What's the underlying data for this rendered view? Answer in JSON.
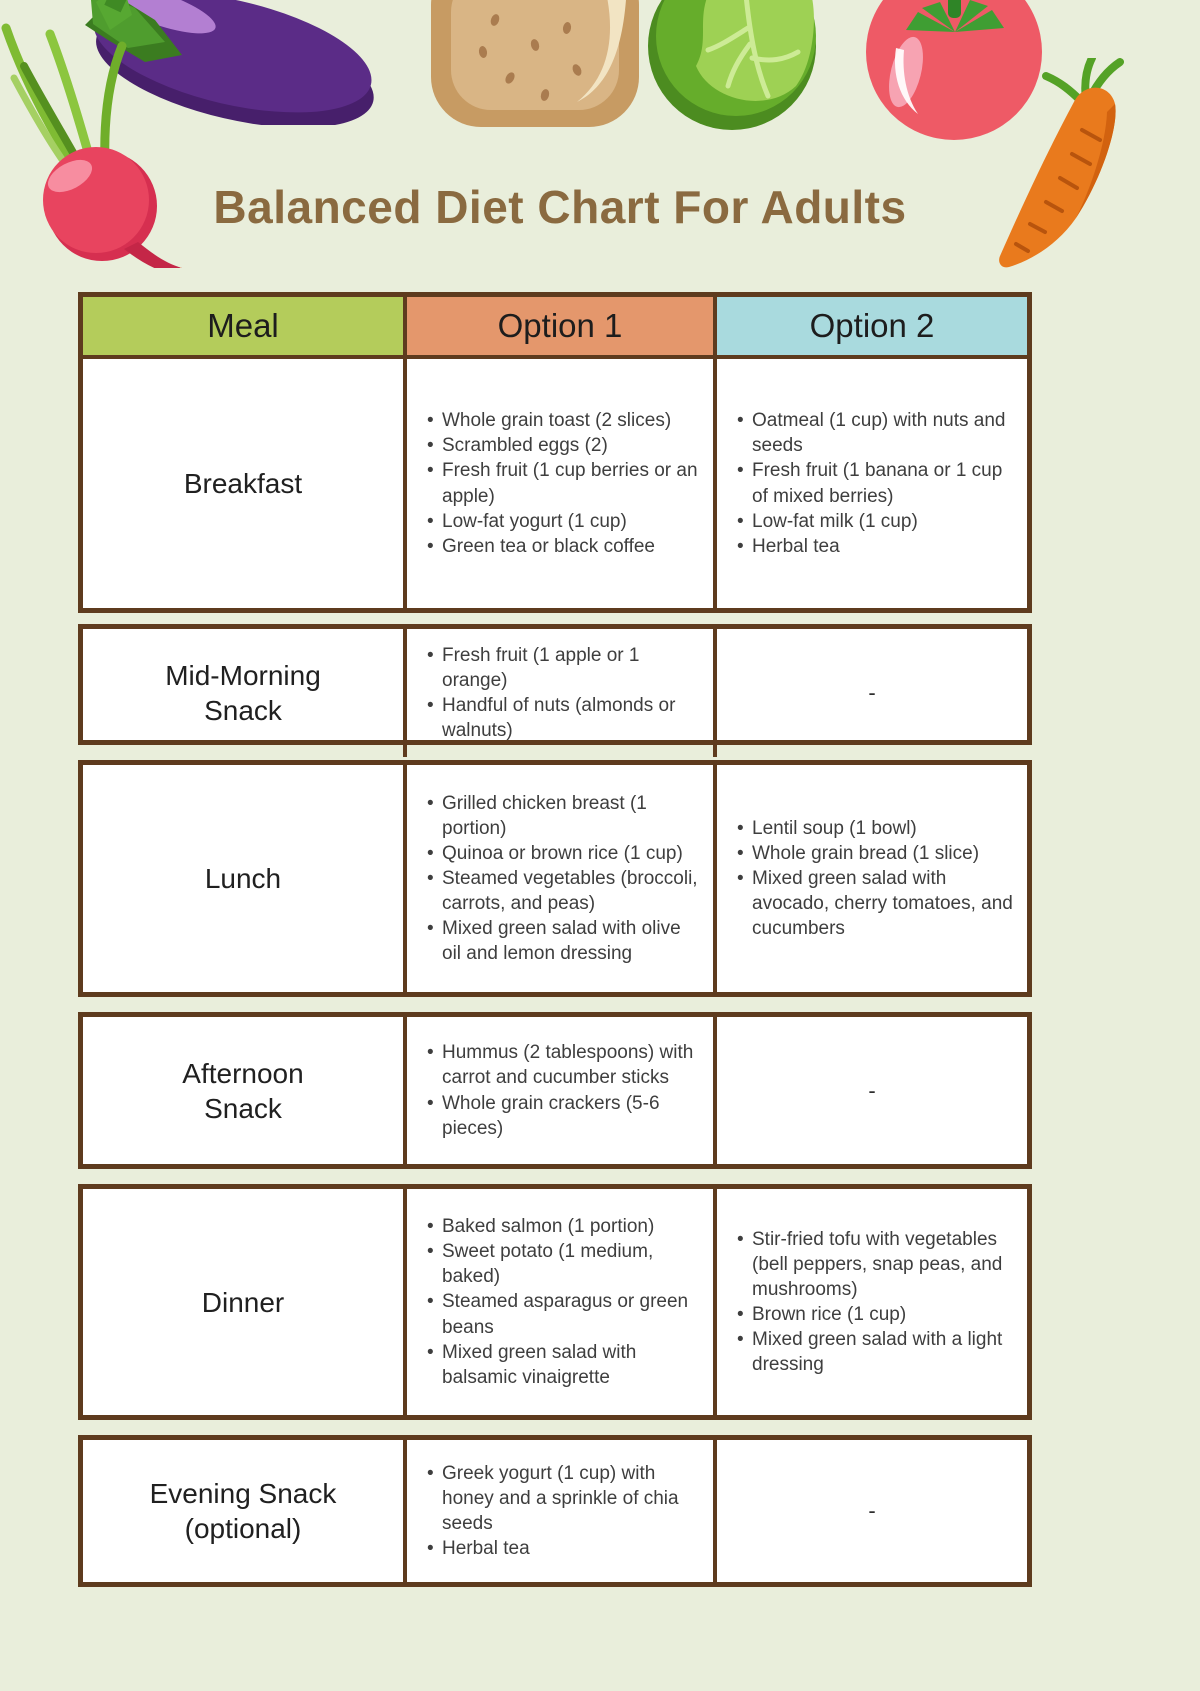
{
  "page": {
    "title": "Balanced Diet Chart For Adults"
  },
  "colors": {
    "background": "#e9eedb",
    "table_border": "#5e3b1e",
    "meal_header": "#b4cc5b",
    "option1_header": "#e4976c",
    "option2_header": "#a9dade",
    "title_text": "#8a6a40"
  },
  "decorations": [
    "eggplant-illustration",
    "radish-illustration",
    "bread-slice-illustration",
    "cabbage-illustration",
    "tomato-illustration",
    "carrot-illustration"
  ],
  "table": {
    "columns": [
      "Meal",
      "Option 1",
      "Option 2"
    ],
    "empty_cell_text": "-",
    "rows": [
      {
        "meal": "Breakfast",
        "option1": [
          "Whole grain toast (2 slices)",
          "Scrambled eggs (2)",
          "Fresh fruit (1 cup berries or an apple)",
          "Low-fat yogurt (1 cup)",
          "Green tea or black coffee"
        ],
        "option2": [
          "Oatmeal (1 cup) with nuts and seeds",
          "Fresh fruit (1 banana or 1 cup of mixed berries)",
          "Low-fat milk (1 cup)",
          "Herbal tea"
        ]
      },
      {
        "meal": "Mid-Morning\nSnack",
        "option1": [
          "Fresh fruit (1 apple or 1 orange)",
          "Handful of nuts (almonds or walnuts)"
        ],
        "option2": "-"
      },
      {
        "meal": "Lunch",
        "option1": [
          "Grilled chicken breast (1 portion)",
          "Quinoa or brown rice (1 cup)",
          "Steamed vegetables (broccoli, carrots, and peas)",
          "Mixed green salad with olive oil and lemon dressing"
        ],
        "option2": [
          "Lentil soup (1 bowl)",
          "Whole grain bread (1 slice)",
          "Mixed green salad with avocado, cherry tomatoes, and cucumbers"
        ]
      },
      {
        "meal": "Afternoon\nSnack",
        "option1": [
          "Hummus (2 tablespoons) with carrot and cucumber sticks",
          "Whole grain crackers (5-6 pieces)"
        ],
        "option2": "-"
      },
      {
        "meal": "Dinner",
        "option1": [
          "Baked salmon (1 portion)",
          "Sweet potato (1 medium, baked)",
          "Steamed asparagus or green beans",
          "Mixed green salad with balsamic vinaigrette"
        ],
        "option2": [
          "Stir-fried tofu with vegetables (bell peppers, snap peas, and mushrooms)",
          "Brown rice (1 cup)",
          "Mixed green salad with a light dressing"
        ]
      },
      {
        "meal": "Evening Snack\n(optional)",
        "option1": [
          "Greek yogurt (1 cup) with honey and a sprinkle of chia seeds",
          "Herbal tea"
        ],
        "option2": "-"
      }
    ]
  }
}
